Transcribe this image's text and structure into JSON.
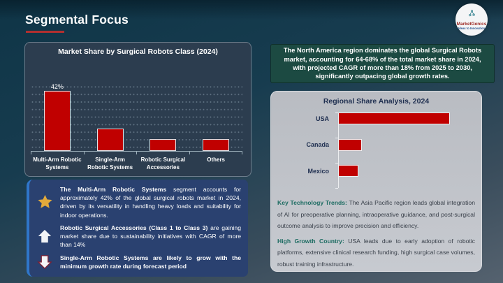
{
  "header": {
    "title": "Segmental Focus",
    "logo": {
      "brand": "MarketGenics",
      "tagline": "Ideas to Innovation"
    }
  },
  "banner": {
    "text": "The North America region dominates the global Surgical Robots market, accounting for 64-68% of the total market share in 2024, with projected CAGR of more than 18% from 2025 to 2030, significantly outpacing global growth rates."
  },
  "callouts": [
    {
      "icon": "star-icon",
      "bold": "The Multi-Arm Robotic Systems",
      "text": " segment accounts for approximately 42% of the global surgical robots market in 2024, driven by its versatility in handling heavy loads and suitability for indoor operations."
    },
    {
      "icon": "up-arrow-icon",
      "bold": "Robotic Surgical Accessories (Class 1 to Class 3)",
      "text": " are gaining market share due to sustainability initiatives with CAGR of more than 14%"
    },
    {
      "icon": "down-arrow-icon",
      "bold": "Single-Arm Robotic Systems are likely to grow with the minimum growth rate during forecast period",
      "text": ""
    }
  ],
  "regional_notes": [
    {
      "lead": "Key Technology Trends:",
      "text": " The Asia Pacific region leads global integration of AI for preoperative planning, intraoperative guidance, and post-surgical outcome analysis to improve precision and efficiency."
    },
    {
      "lead": "High Growth Country:",
      "text": " USA leads due to early adoption of robotic platforms, extensive clinical research funding, high surgical case volumes, robust training infrastructure."
    }
  ],
  "colors": {
    "bar_red": "#c00000",
    "title_underline_red": "#b32f2f",
    "banner_green": "#1c4a42",
    "callout_navy": "#2a4170",
    "callout_accent_blue": "#2f76c9",
    "panel_gray": "#c0c3c9",
    "note_lead_teal": "#1d6c62",
    "star_gold": "#e2a93b"
  },
  "chart_data": [
    {
      "type": "bar",
      "orientation": "vertical",
      "title": "Market Share by Surgical Robots Class (2024)",
      "categories": [
        "Multi-Arm Robotic Systems",
        "Single-Arm Robotic Systems",
        "Robotic Surgical Accessories",
        "Others"
      ],
      "values": [
        42,
        15,
        8,
        8
      ],
      "data_labels": [
        "42%",
        "",
        "",
        ""
      ],
      "unit": "% market share",
      "ylim": [
        0,
        45
      ],
      "gridline_step": 5,
      "grid": true,
      "bar_color": "#c00000",
      "legend": false
    },
    {
      "type": "bar",
      "orientation": "horizontal",
      "title": "Regional Share Analysis, 2024",
      "categories": [
        "USA",
        "Canada",
        "Mexico"
      ],
      "values": [
        66,
        14,
        12
      ],
      "unit": "% market share (estimated from bar lengths)",
      "xlim": [
        0,
        80
      ],
      "grid": false,
      "bar_color": "#c00000",
      "legend": false
    }
  ]
}
